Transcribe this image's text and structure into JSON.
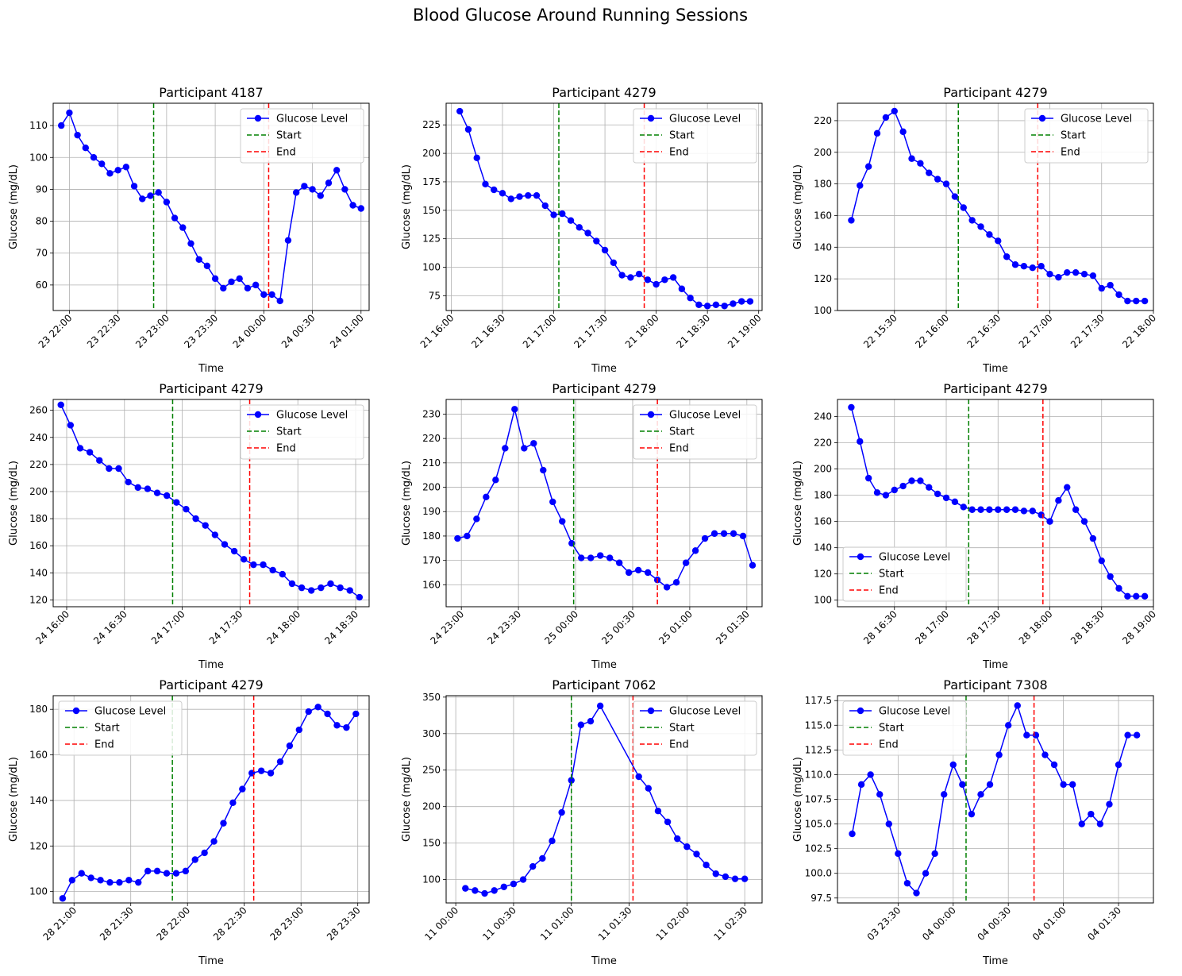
{
  "figure_title": "Blood Glucose Around Running Sessions",
  "chart_data": [
    {
      "type": "line",
      "title": "Participant 4187",
      "xlabel": "Time",
      "ylabel": "Glucose (mg/dL)",
      "legend": "upper right",
      "grid": true,
      "x_ticks": [
        "23 22:00",
        "23 22:30",
        "23 23:00",
        "23 23:30",
        "24 00:00",
        "24 00:30",
        "24 01:00"
      ],
      "x_tick_values": [
        0,
        30,
        60,
        90,
        120,
        150,
        180
      ],
      "xlim": [
        -10,
        185
      ],
      "y_ticks": [
        60,
        70,
        80,
        90,
        100,
        110
      ],
      "ylim": [
        52,
        117
      ],
      "series": [
        {
          "name": "Glucose Level",
          "color": "#0000ff",
          "x": [
            -5,
            0,
            5,
            10,
            15,
            20,
            25,
            30,
            35,
            40,
            45,
            50,
            55,
            60,
            65,
            70,
            75,
            80,
            85,
            90,
            95,
            100,
            105,
            110,
            115,
            120,
            125,
            130,
            135,
            140,
            145,
            150,
            155,
            160,
            165,
            170,
            175,
            180
          ],
          "y": [
            110,
            114,
            107,
            103,
            100,
            98,
            95,
            96,
            97,
            91,
            87,
            88,
            89,
            86,
            81,
            78,
            73,
            68,
            66,
            62,
            59,
            61,
            62,
            59,
            60,
            57,
            57,
            55,
            74,
            89,
            91,
            90,
            88,
            92,
            96,
            90,
            85,
            84
          ]
        }
      ],
      "vlines": [
        {
          "name": "Start",
          "x": 52,
          "color": "#008000"
        },
        {
          "name": "End",
          "x": 123,
          "color": "#ff0000"
        }
      ]
    },
    {
      "type": "line",
      "title": "Participant 4279",
      "xlabel": "Time",
      "ylabel": "Glucose (mg/dL)",
      "legend": "upper right",
      "grid": true,
      "x_ticks": [
        "21 16:00",
        "21 16:30",
        "21 17:00",
        "21 17:30",
        "21 18:00",
        "21 18:30",
        "21 19:00"
      ],
      "x_tick_values": [
        0,
        30,
        60,
        90,
        120,
        150,
        180
      ],
      "xlim": [
        -3,
        182
      ],
      "y_ticks": [
        75,
        100,
        125,
        150,
        175,
        200,
        225
      ],
      "ylim": [
        62,
        244
      ],
      "series": [
        {
          "name": "Glucose Level",
          "color": "#0000ff",
          "x": [
            5,
            10,
            15,
            20,
            25,
            30,
            35,
            40,
            45,
            50,
            55,
            60,
            65,
            70,
            75,
            80,
            85,
            90,
            95,
            100,
            105,
            110,
            115,
            120,
            125,
            130,
            135,
            140,
            145,
            150,
            155,
            160,
            165,
            170,
            175
          ],
          "y": [
            237,
            221,
            196,
            173,
            168,
            165,
            160,
            162,
            163,
            163,
            154,
            146,
            147,
            141,
            135,
            130,
            123,
            115,
            104,
            93,
            91,
            94,
            89,
            85,
            89,
            91,
            81,
            73,
            67,
            66,
            67,
            66,
            68,
            70,
            70
          ]
        }
      ],
      "vlines": [
        {
          "name": "Start",
          "x": 63,
          "color": "#008000"
        },
        {
          "name": "End",
          "x": 113,
          "color": "#ff0000"
        }
      ]
    },
    {
      "type": "line",
      "title": "Participant 4279",
      "xlabel": "Time",
      "ylabel": "Glucose (mg/dL)",
      "legend": "upper right",
      "grid": true,
      "x_ticks": [
        "22 15:30",
        "22 16:00",
        "22 16:30",
        "22 17:00",
        "22 17:30",
        "22 18:00"
      ],
      "x_tick_values": [
        30,
        60,
        90,
        120,
        150,
        180
      ],
      "xlim": [
        -3,
        180
      ],
      "y_ticks": [
        100,
        120,
        140,
        160,
        180,
        200,
        220
      ],
      "ylim": [
        100,
        231
      ],
      "series": [
        {
          "name": "Glucose Level",
          "color": "#0000ff",
          "x": [
            5,
            10,
            15,
            20,
            25,
            30,
            35,
            40,
            45,
            50,
            55,
            60,
            65,
            70,
            75,
            80,
            85,
            90,
            95,
            100,
            105,
            110,
            115,
            120,
            125,
            130,
            135,
            140,
            145,
            150,
            155,
            160,
            165,
            170,
            175
          ],
          "y": [
            157,
            179,
            191,
            212,
            222,
            226,
            213,
            196,
            193,
            187,
            183,
            180,
            172,
            165,
            157,
            153,
            148,
            144,
            134,
            129,
            128,
            127,
            128,
            123,
            121,
            124,
            124,
            123,
            122,
            114,
            116,
            110,
            106,
            106,
            106
          ]
        }
      ],
      "vlines": [
        {
          "name": "Start",
          "x": 67,
          "color": "#008000"
        },
        {
          "name": "End",
          "x": 113,
          "color": "#ff0000"
        }
      ]
    },
    {
      "type": "line",
      "title": "Participant 4279",
      "xlabel": "Time",
      "ylabel": "Glucose (mg/dL)",
      "legend": "upper right",
      "grid": true,
      "x_ticks": [
        "24 16:00",
        "24 16:30",
        "24 17:00",
        "24 17:30",
        "24 18:00",
        "24 18:30"
      ],
      "x_tick_values": [
        0,
        30,
        60,
        90,
        120,
        150
      ],
      "xlim": [
        -7,
        157
      ],
      "y_ticks": [
        120,
        140,
        160,
        180,
        200,
        220,
        240,
        260
      ],
      "ylim": [
        115,
        268
      ],
      "series": [
        {
          "name": "Glucose Level",
          "color": "#0000ff",
          "x": [
            -3,
            2,
            7,
            12,
            17,
            22,
            27,
            32,
            37,
            42,
            47,
            52,
            57,
            62,
            67,
            72,
            77,
            82,
            87,
            92,
            97,
            102,
            107,
            112,
            117,
            122,
            127,
            132,
            137,
            142,
            147,
            152
          ],
          "y": [
            264,
            249,
            232,
            229,
            223,
            217,
            217,
            207,
            203,
            202,
            199,
            197,
            192,
            187,
            180,
            175,
            168,
            161,
            156,
            150,
            146,
            146,
            142,
            139,
            132,
            129,
            127,
            129,
            132,
            129,
            127,
            122
          ]
        }
      ],
      "vlines": [
        {
          "name": "Start",
          "x": 55,
          "color": "#008000"
        },
        {
          "name": "End",
          "x": 95,
          "color": "#ff0000"
        }
      ]
    },
    {
      "type": "line",
      "title": "Participant 4279",
      "xlabel": "Time",
      "ylabel": "Glucose (mg/dL)",
      "legend": "upper right",
      "grid": true,
      "x_ticks": [
        "24 23:00",
        "24 23:30",
        "25 00:00",
        "25 00:30",
        "25 01:00",
        "25 01:30"
      ],
      "x_tick_values": [
        0,
        30,
        60,
        90,
        120,
        150
      ],
      "xlim": [
        -8,
        158
      ],
      "y_ticks": [
        160,
        170,
        180,
        190,
        200,
        210,
        220,
        230
      ],
      "ylim": [
        151,
        236
      ],
      "series": [
        {
          "name": "Glucose Level",
          "color": "#0000ff",
          "x": [
            -2,
            3,
            8,
            13,
            18,
            23,
            28,
            33,
            38,
            43,
            48,
            53,
            58,
            63,
            68,
            73,
            78,
            83,
            88,
            93,
            98,
            103,
            108,
            113,
            118,
            123,
            128,
            133,
            138,
            143,
            148,
            153
          ],
          "y": [
            179,
            180,
            187,
            196,
            203,
            216,
            232,
            216,
            218,
            207,
            194,
            186,
            177,
            171,
            171,
            172,
            171,
            169,
            165,
            166,
            165,
            162,
            159,
            161,
            169,
            174,
            179,
            181,
            181,
            181,
            180,
            168
          ]
        }
      ],
      "vlines": [
        {
          "name": "Start",
          "x": 59,
          "color": "#008000"
        },
        {
          "name": "End",
          "x": 103,
          "color": "#ff0000"
        }
      ]
    },
    {
      "type": "line",
      "title": "Participant 4279",
      "xlabel": "Time",
      "ylabel": "Glucose (mg/dL)",
      "legend": "lower left",
      "grid": true,
      "x_ticks": [
        "28 16:30",
        "28 17:00",
        "28 17:30",
        "28 18:00",
        "28 18:30",
        "28 19:00"
      ],
      "x_tick_values": [
        30,
        60,
        90,
        120,
        150,
        180
      ],
      "xlim": [
        -3,
        180
      ],
      "y_ticks": [
        100,
        120,
        140,
        160,
        180,
        200,
        220,
        240
      ],
      "ylim": [
        95,
        253
      ],
      "series": [
        {
          "name": "Glucose Level",
          "color": "#0000ff",
          "x": [
            5,
            10,
            15,
            20,
            25,
            30,
            35,
            40,
            45,
            50,
            55,
            60,
            65,
            70,
            75,
            80,
            85,
            90,
            95,
            100,
            105,
            110,
            115,
            120,
            125,
            130,
            135,
            140,
            145,
            150,
            155,
            160,
            165,
            170,
            175
          ],
          "y": [
            247,
            221,
            193,
            182,
            180,
            184,
            187,
            191,
            191,
            186,
            181,
            178,
            175,
            171,
            169,
            169,
            169,
            169,
            169,
            169,
            168,
            168,
            165,
            160,
            176,
            186,
            169,
            160,
            147,
            130,
            118,
            109,
            103,
            103,
            103
          ]
        }
      ],
      "vlines": [
        {
          "name": "Start",
          "x": 73,
          "color": "#008000"
        },
        {
          "name": "End",
          "x": 116,
          "color": "#ff0000"
        }
      ]
    },
    {
      "type": "line",
      "title": "Participant 4279",
      "xlabel": "Time",
      "ylabel": "Glucose (mg/dL)",
      "legend": "upper left",
      "grid": true,
      "x_ticks": [
        "28 21:00",
        "28 21:30",
        "28 22:00",
        "28 22:30",
        "28 23:00",
        "28 23:30"
      ],
      "x_tick_values": [
        0,
        30,
        60,
        90,
        120,
        150
      ],
      "xlim": [
        -11,
        156
      ],
      "y_ticks": [
        100,
        120,
        140,
        160,
        180
      ],
      "ylim": [
        95,
        186
      ],
      "series": [
        {
          "name": "Glucose Level",
          "color": "#0000ff",
          "x": [
            -6,
            -1,
            4,
            9,
            14,
            19,
            24,
            29,
            34,
            39,
            44,
            49,
            54,
            59,
            64,
            69,
            74,
            79,
            84,
            89,
            94,
            99,
            104,
            109,
            114,
            119,
            124,
            129,
            134,
            139,
            144,
            149
          ],
          "y": [
            97,
            105,
            108,
            106,
            105,
            104,
            104,
            105,
            104,
            109,
            109,
            108,
            108,
            109,
            114,
            117,
            122,
            130,
            139,
            145,
            152,
            153,
            152,
            157,
            164,
            171,
            179,
            181,
            178,
            173,
            172,
            178
          ]
        }
      ],
      "vlines": [
        {
          "name": "Start",
          "x": 52,
          "color": "#008000"
        },
        {
          "name": "End",
          "x": 95,
          "color": "#ff0000"
        }
      ]
    },
    {
      "type": "line",
      "title": "Participant 7062",
      "xlabel": "Time",
      "ylabel": "Glucose (mg/dL)",
      "legend": "upper right",
      "grid": true,
      "x_ticks": [
        "11 00:00",
        "11 00:30",
        "11 01:00",
        "11 01:30",
        "11 02:00",
        "11 02:30"
      ],
      "x_tick_values": [
        0,
        30,
        60,
        90,
        120,
        150
      ],
      "xlim": [
        -5,
        159
      ],
      "y_ticks": [
        100,
        150,
        200,
        250,
        300,
        350
      ],
      "ylim": [
        68,
        352
      ],
      "series": [
        {
          "name": "Glucose Level",
          "color": "#0000ff",
          "x": [
            5,
            10,
            15,
            20,
            25,
            30,
            35,
            40,
            45,
            50,
            55,
            60,
            65,
            70,
            75,
            95,
            100,
            105,
            110,
            115,
            120,
            125,
            130,
            135,
            140,
            145,
            150
          ],
          "y": [
            88,
            85,
            81,
            85,
            90,
            94,
            100,
            118,
            129,
            153,
            192,
            236,
            312,
            317,
            338,
            241,
            225,
            194,
            179,
            156,
            145,
            135,
            120,
            108,
            104,
            101,
            101
          ]
        }
      ],
      "vlines": [
        {
          "name": "Start",
          "x": 60,
          "color": "#008000"
        },
        {
          "name": "End",
          "x": 92,
          "color": "#ff0000"
        }
      ]
    },
    {
      "type": "line",
      "title": "Participant 7308",
      "xlabel": "Time",
      "ylabel": "Glucose (mg/dL)",
      "legend": "upper left",
      "grid": true,
      "x_ticks": [
        "03 23:30",
        "04 00:00",
        "04 00:30",
        "04 01:00",
        "04 01:30"
      ],
      "x_tick_values": [
        30,
        60,
        90,
        120,
        150
      ],
      "xlim": [
        -3,
        169
      ],
      "y_ticks": [
        97.5,
        100.0,
        102.5,
        105.0,
        107.5,
        110.0,
        112.5,
        115.0,
        117.5
      ],
      "y_tick_labels": [
        "97.5",
        "100.0",
        "102.5",
        "105.0",
        "107.5",
        "110.0",
        "112.5",
        "115.0",
        "117.5"
      ],
      "ylim": [
        97.0,
        118.0
      ],
      "series": [
        {
          "name": "Glucose Level",
          "color": "#0000ff",
          "x": [
            5,
            10,
            15,
            20,
            25,
            30,
            35,
            40,
            45,
            50,
            55,
            60,
            65,
            70,
            75,
            80,
            85,
            90,
            95,
            100,
            105,
            110,
            115,
            120,
            125,
            130,
            135,
            140,
            145,
            150,
            155,
            160
          ],
          "y": [
            104,
            109,
            110,
            108,
            105,
            102,
            99,
            98,
            100,
            102,
            108,
            111,
            109,
            106,
            108,
            109,
            112,
            115,
            117,
            114,
            114,
            112,
            111,
            109,
            109,
            105,
            106,
            105,
            107,
            111,
            114,
            114
          ]
        }
      ],
      "vlines": [
        {
          "name": "Start",
          "x": 67,
          "color": "#008000"
        },
        {
          "name": "End",
          "x": 104,
          "color": "#ff0000"
        }
      ]
    }
  ]
}
